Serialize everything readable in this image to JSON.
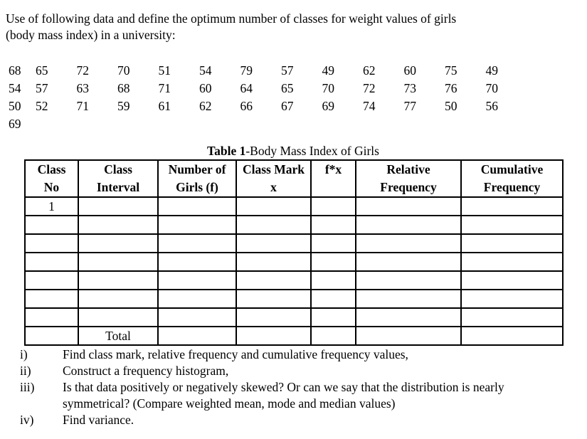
{
  "page": {
    "intro": {
      "line1": "Use of following data and define the optimum number of classes for weight values of girls",
      "line2": "(body mass index) in a university:"
    },
    "raw_data": {
      "rows": [
        [
          "68",
          "65",
          "72",
          "70",
          "51",
          "54",
          "79",
          "57",
          "49",
          "62",
          "60",
          "75",
          "49"
        ],
        [
          "54",
          "57",
          "63",
          "68",
          "71",
          "60",
          "64",
          "65",
          "70",
          "72",
          "73",
          "76",
          "70"
        ],
        [
          "50",
          "52",
          "71",
          "59",
          "61",
          "62",
          "66",
          "67",
          "69",
          "74",
          "77",
          "50",
          "56"
        ],
        [
          "69"
        ]
      ]
    },
    "table": {
      "title_bold": "Table 1",
      "title_rest": "-Body Mass Index of Girls",
      "headers": [
        {
          "line1": "Class",
          "line2": "No"
        },
        {
          "line1": "Class",
          "line2": "Interval"
        },
        {
          "line1": "Number of",
          "line2": "Girls (f)"
        },
        {
          "line1": "Class Mark",
          "line2": "x"
        },
        {
          "line1": "f*x",
          "line2": ""
        },
        {
          "line1": "Relative",
          "line2": "Frequency"
        },
        {
          "line1": "Cumulative",
          "line2": "Frequency"
        }
      ],
      "body_rows": [
        [
          "1",
          "",
          "",
          "",
          "",
          "",
          ""
        ],
        [
          "",
          "",
          "",
          "",
          "",
          "",
          ""
        ],
        [
          "",
          "",
          "",
          "",
          "",
          "",
          ""
        ],
        [
          "",
          "",
          "",
          "",
          "",
          "",
          ""
        ],
        [
          "",
          "",
          "",
          "",
          "",
          "",
          ""
        ],
        [
          "",
          "",
          "",
          "",
          "",
          "",
          ""
        ],
        [
          "",
          "",
          "",
          "",
          "",
          "",
          ""
        ],
        [
          "",
          "Total",
          "",
          "",
          "",
          "",
          ""
        ]
      ]
    },
    "tasks": [
      {
        "marker": "i)",
        "text": "Find class mark, relative frequency and cumulative frequency values,"
      },
      {
        "marker": "ii)",
        "text": "Construct a frequency histogram,"
      },
      {
        "marker": "iii)",
        "text": "Is that data positively or negatively skewed? Or can we say that the distribution is nearly symmetrical? (Compare weighted mean, mode and median values)"
      },
      {
        "marker": "iv)",
        "text": "Find variance."
      }
    ]
  }
}
